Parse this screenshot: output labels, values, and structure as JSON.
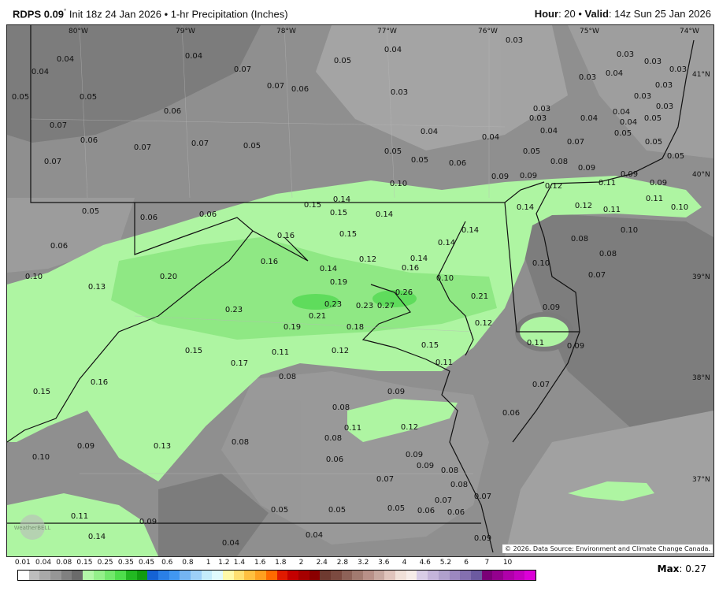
{
  "header": {
    "model": "RDPS 0.09",
    "deg": "°",
    "init": " Init 18z 24 Jan 2026 • 1-hr Precipitation (Inches)",
    "hour_label": "Hour",
    "hour": ": 20 • ",
    "valid_label": "Valid",
    "valid": ": 14z Sun 25 Jan 2026"
  },
  "longitudes": [
    "80°W",
    "79°W",
    "78°W",
    "77°W",
    "76°W",
    "75°W",
    "74°W"
  ],
  "latitudes": [
    "41°N",
    "40°N",
    "39°N",
    "38°N",
    "37°N"
  ],
  "precip_labels": [
    "0.04",
    "0.04",
    "0.04",
    "0.07",
    "0.05",
    "0.04",
    "0.03",
    "0.03",
    "0.03",
    "0.05",
    "0.05",
    "0.07",
    "0.06",
    "0.03",
    "0.03",
    "0.04",
    "0.03",
    "0.03",
    "0.03",
    "0.06",
    "0.07",
    "0.06",
    "0.07",
    "0.07",
    "0.05",
    "0.04",
    "0.04",
    "0.03",
    "0.03",
    "0.04",
    "0.04",
    "0.04",
    "0.05",
    "0.03",
    "0.07",
    "0.05",
    "0.05",
    "0.06",
    "0.04",
    "0.05",
    "0.07",
    "0.05",
    "0.05",
    "0.08",
    "0.09",
    "0.09",
    "0.09",
    "0.10",
    "0.09",
    "0.11",
    "0.09",
    "0.05",
    "0.12",
    "0.14",
    "0.15",
    "0.15",
    "0.14",
    "0.05",
    "0.06",
    "0.06",
    "0.14",
    "0.12",
    "0.11",
    "0.11",
    "0.10",
    "0.16",
    "0.15",
    "0.14",
    "0.08",
    "0.10",
    "0.06",
    "0.16",
    "0.12",
    "0.14",
    "0.16",
    "0.08",
    "0.10",
    "0.14",
    "0.14",
    "0.10",
    "0.20",
    "0.07",
    "0.19",
    "0.13",
    "0.26",
    "0.27",
    "0.23",
    "0.23",
    "0.23",
    "0.21",
    "0.10",
    "0.21",
    "0.19",
    "0.18",
    "0.12",
    "0.09",
    "0.11",
    "0.09",
    "0.15",
    "0.11",
    "0.12",
    "0.15",
    "0.17",
    "0.11",
    "0.08",
    "0.15",
    "0.16",
    "0.09",
    "0.07",
    "0.08",
    "0.06",
    "0.11",
    "0.12",
    "0.08",
    "0.09",
    "0.13",
    "0.08",
    "0.10",
    "0.06",
    "0.09",
    "0.09",
    "0.08",
    "0.07",
    "0.08",
    "0.07",
    "0.07",
    "0.05",
    "0.05",
    "0.05",
    "0.06",
    "0.06",
    "0.11",
    "0.09",
    "0.14",
    "0.04",
    "0.04",
    "0.09"
  ],
  "copyright": "© 2026. Data Source: Environment and Climate Change Canada.",
  "logo": "WeatherBELL",
  "colorbar": {
    "labels": [
      "0.01",
      "0.04",
      "0.08",
      "0.15",
      "0.25",
      "0.35",
      "0.45",
      "0.6",
      "0.8",
      "1",
      "1.2",
      "1.4",
      "1.6",
      "1.8",
      "2",
      "2.4",
      "2.8",
      "3.2",
      "3.6",
      "4",
      "4.6",
      "5.2",
      "6",
      "7",
      "10"
    ],
    "colors": [
      "#ffffff",
      "#bdbdbd",
      "#a9a9a9",
      "#969696",
      "#808080",
      "#6b6b6b",
      "#b3f7a8",
      "#94f08a",
      "#72e86c",
      "#4ede4c",
      "#22b822",
      "#119c11",
      "#1562d4",
      "#2a7fe6",
      "#4197f0",
      "#74b4f2",
      "#9dd0f8",
      "#c4ecfb",
      "#e0fbfd",
      "#fffaa8",
      "#ffe070",
      "#ffc040",
      "#ffa020",
      "#ff6a00",
      "#e01a00",
      "#c40000",
      "#a60000",
      "#8a0000",
      "#6e3a30",
      "#7c4a40",
      "#8e6258",
      "#a27a70",
      "#b89088",
      "#c8a8a0",
      "#e0c4bc",
      "#f0e0d8",
      "#f6ece8",
      "#d8cce6",
      "#c4b4da",
      "#b0a0cc",
      "#9c88c0",
      "#8470b0",
      "#6c5aa0",
      "#7a0077",
      "#94008e",
      "#b000aa",
      "#c400c0",
      "#dc00d8"
    ],
    "max_label": "Max",
    "max_value": ": 0.27"
  },
  "colors": {
    "light_green": "#aef5a2",
    "mid_green": "#8fe884",
    "dark_green": "#5fdc5c",
    "background_gray": "#8f8f8f"
  }
}
